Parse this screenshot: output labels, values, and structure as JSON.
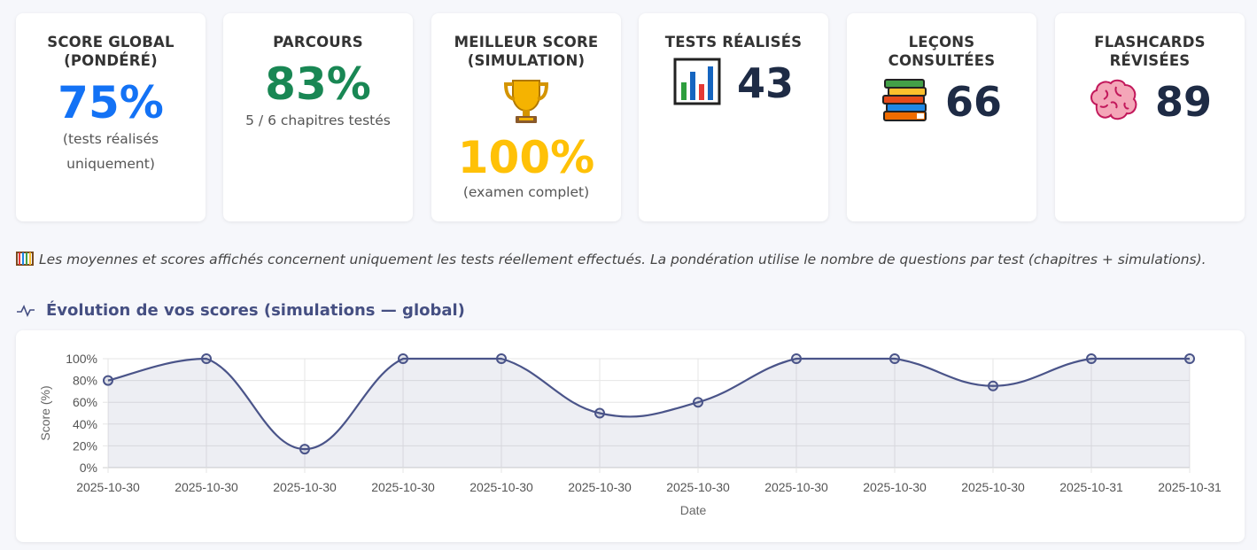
{
  "cards": {
    "global": {
      "title": "Score global (pondéré)",
      "value": "75%",
      "note_line1": "(tests réalisés",
      "note_line2": "uniquement)",
      "color": "#1372f5"
    },
    "parcours": {
      "title": "Parcours",
      "value": "83%",
      "note": "5 / 6 chapitres testés",
      "color": "#198754"
    },
    "best": {
      "title": "Meilleur score (simulation)",
      "icon": "trophy-icon",
      "value": "100%",
      "note": "(examen complet)",
      "color": "#ffc107"
    },
    "tests": {
      "title": "Tests réalisés",
      "icon": "bar-chart-icon",
      "value": "43"
    },
    "lessons": {
      "title": "Leçons consultées",
      "icon": "books-icon",
      "value": "66"
    },
    "flashcards": {
      "title": "Flashcards révisées",
      "icon": "brain-icon",
      "value": "89"
    }
  },
  "note": {
    "icon": "abacus-icon",
    "text": "Les moyennes et scores affichés concernent uniquement les tests réellement effectués. La pondération utilise le nombre de questions par test (chapitres + simulations)."
  },
  "section": {
    "icon": "pulse-icon",
    "title": "Évolution de vos scores (simulations — global)"
  },
  "chart_data": {
    "type": "line",
    "x": [
      "2025-10-30",
      "2025-10-30",
      "2025-10-30",
      "2025-10-30",
      "2025-10-30",
      "2025-10-30",
      "2025-10-30",
      "2025-10-30",
      "2025-10-30",
      "2025-10-30",
      "2025-10-31",
      "2025-10-31"
    ],
    "series": [
      {
        "values": [
          80,
          100,
          17,
          100,
          100,
          50,
          60,
          100,
          100,
          75,
          100,
          100
        ],
        "color": "#4a5489"
      }
    ],
    "xlabel": "Date",
    "ylabel": "Score (%)",
    "ylim": [
      0,
      100
    ],
    "yticks": [
      "0%",
      "20%",
      "40%",
      "60%",
      "80%",
      "100%"
    ],
    "grid": true,
    "fill": true
  }
}
